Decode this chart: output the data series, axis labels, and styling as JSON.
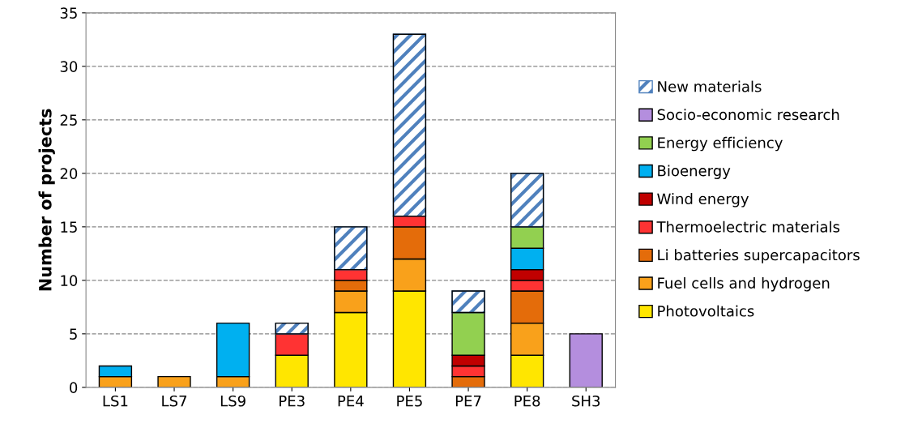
{
  "chart_data": {
    "type": "bar",
    "stacked": true,
    "ylabel": "Number of projects",
    "categories": [
      "LS1",
      "LS7",
      "LS9",
      "PE3",
      "PE4",
      "PE5",
      "PE7",
      "PE8",
      "SH3"
    ],
    "series": [
      {
        "name": "Photovoltaics",
        "color": "#ffe600",
        "values": [
          0,
          0,
          0,
          3,
          7,
          9,
          0,
          3,
          0
        ]
      },
      {
        "name": "Fuel cells and hydrogen",
        "color": "#f9a11b",
        "values": [
          1,
          1,
          1,
          0,
          2,
          3,
          0,
          3,
          0
        ]
      },
      {
        "name": "Li batteries supercapacitors",
        "color": "#e46c0a",
        "values": [
          0,
          0,
          0,
          0,
          1,
          3,
          1,
          3,
          0
        ]
      },
      {
        "name": "Thermoelectric materials",
        "color": "#ff3333",
        "values": [
          0,
          0,
          0,
          2,
          1,
          1,
          1,
          1,
          0
        ]
      },
      {
        "name": "Wind energy",
        "color": "#c00000",
        "values": [
          0,
          0,
          0,
          0,
          0,
          0,
          1,
          1,
          0
        ]
      },
      {
        "name": "Bioenergy",
        "color": "#00b0f0",
        "values": [
          1,
          0,
          5,
          0,
          0,
          0,
          0,
          2,
          0
        ]
      },
      {
        "name": "Energy efficiency",
        "color": "#92d050",
        "values": [
          0,
          0,
          0,
          0,
          0,
          0,
          4,
          2,
          0
        ]
      },
      {
        "name": "Socio-economic research",
        "color": "#b48ede",
        "values": [
          0,
          0,
          0,
          0,
          0,
          0,
          0,
          0,
          5
        ]
      },
      {
        "name": "New materials",
        "color": "#4f81bd",
        "values": [
          0,
          0,
          0,
          1,
          4,
          17,
          2,
          5,
          0
        ]
      }
    ],
    "ylim": [
      0,
      35
    ],
    "yticks": [
      0,
      5,
      10,
      15,
      20,
      25,
      30,
      35
    ],
    "grid": "y",
    "legend": "right"
  }
}
